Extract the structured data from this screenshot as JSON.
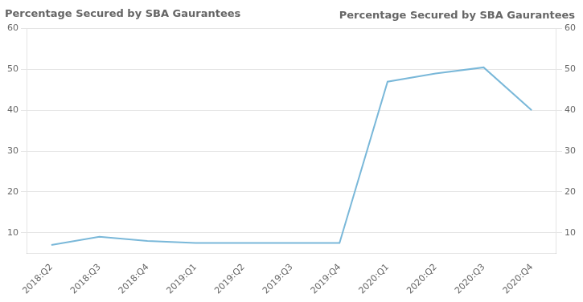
{
  "chart_data": {
    "type": "line",
    "title": "Percentage Secured by SBA Gaurantees",
    "annotations": [
      "Percentage Secured by SBA Gaurantees"
    ],
    "categories": [
      "2018:Q2",
      "2018:Q3",
      "2018:Q4",
      "2019:Q1",
      "2019:Q2",
      "2019:Q3",
      "2019:Q4",
      "2020:Q1",
      "2020:Q2",
      "2020:Q3",
      "2020:Q4"
    ],
    "values": [
      7.0,
      9.0,
      8.0,
      7.5,
      7.5,
      7.5,
      7.5,
      47.0,
      49.0,
      50.5,
      40.0
    ],
    "color": "#7ab8d9",
    "ylim": [
      5,
      60
    ],
    "yticks": [
      10,
      20,
      30,
      40,
      50,
      60
    ],
    "y2lim": [
      5,
      60
    ],
    "y2ticks": [
      10,
      20,
      30,
      40,
      50,
      60
    ],
    "grid": true
  }
}
